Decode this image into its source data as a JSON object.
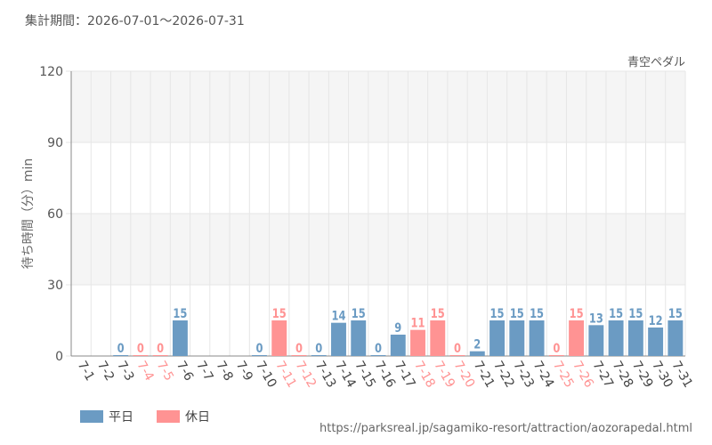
{
  "header": {
    "period_text": "集計期間：2026-07-01～2026-07-31"
  },
  "footer": {
    "source_url": "https://parksreal.jp/sagamiko-resort/attraction/aozorapedal.html"
  },
  "colors": {
    "weekday": "#6b9bc3",
    "holiday": "#ff9393",
    "grid": "#e6e6e6",
    "band": "#f5f5f5",
    "axis_text": "#555555"
  },
  "chart_data": {
    "type": "bar",
    "title": "青空ペダル",
    "ylabel": "待ち時間（分）min",
    "xlabel": "",
    "ylim": [
      0,
      120
    ],
    "yticks": [
      0,
      30,
      60,
      90,
      120
    ],
    "grid": true,
    "legend_position": "bottom-left",
    "legend": [
      {
        "key": "weekday",
        "label": "平日"
      },
      {
        "key": "holiday",
        "label": "休日"
      }
    ],
    "categories": [
      "7-1",
      "7-2",
      "7-3",
      "7-4",
      "7-5",
      "7-6",
      "7-7",
      "7-8",
      "7-9",
      "7-10",
      "7-11",
      "7-12",
      "7-13",
      "7-14",
      "7-15",
      "7-16",
      "7-17",
      "7-18",
      "7-19",
      "7-20",
      "7-21",
      "7-22",
      "7-23",
      "7-24",
      "7-25",
      "7-26",
      "7-27",
      "7-28",
      "7-29",
      "7-30",
      "7-31"
    ],
    "values": [
      null,
      null,
      0,
      0,
      0,
      15,
      null,
      null,
      null,
      0,
      15,
      0,
      0,
      14,
      15,
      0,
      9,
      11,
      15,
      0,
      2,
      15,
      15,
      15,
      0,
      15,
      13,
      15,
      15,
      12,
      15
    ],
    "day_type": [
      "weekday",
      "weekday",
      "weekday",
      "holiday",
      "holiday",
      "weekday",
      "weekday",
      "weekday",
      "weekday",
      "weekday",
      "holiday",
      "holiday",
      "weekday",
      "weekday",
      "weekday",
      "weekday",
      "weekday",
      "holiday",
      "holiday",
      "holiday",
      "weekday",
      "weekday",
      "weekday",
      "weekday",
      "holiday",
      "holiday",
      "weekday",
      "weekday",
      "weekday",
      "weekday",
      "weekday"
    ]
  }
}
